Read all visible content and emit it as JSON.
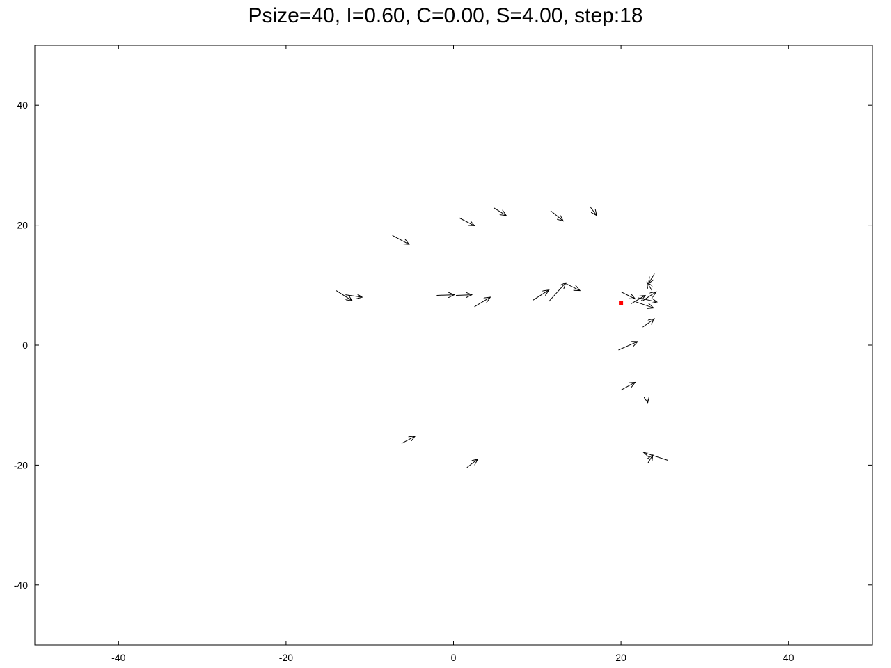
{
  "chart_data": {
    "type": "quiver",
    "title": "Psize=40, I=0.60, C=0.00, S=4.00, step:18",
    "xlabel": "",
    "ylabel": "",
    "xlim": [
      -50,
      50
    ],
    "ylim": [
      -50,
      50
    ],
    "xticks": [
      -40,
      -20,
      0,
      20,
      40
    ],
    "yticks": [
      -40,
      -20,
      0,
      20,
      40
    ],
    "grid": false,
    "legend": "none",
    "colors": {
      "arrow": "#000000",
      "target": "#ff0000",
      "frame": "#000000",
      "background": "#ffffff"
    },
    "target_point": {
      "x": 20.0,
      "y": 7.0
    },
    "arrows": [
      {
        "x1": -7.3,
        "y1": 18.3,
        "x2": -5.3,
        "y2": 16.8
      },
      {
        "x1": 0.7,
        "y1": 21.2,
        "x2": 2.5,
        "y2": 19.9
      },
      {
        "x1": 4.8,
        "y1": 22.9,
        "x2": 6.3,
        "y2": 21.6
      },
      {
        "x1": 11.6,
        "y1": 22.4,
        "x2": 13.1,
        "y2": 20.7
      },
      {
        "x1": 16.3,
        "y1": 23.1,
        "x2": 17.1,
        "y2": 21.6
      },
      {
        "x1": -14.0,
        "y1": 9.1,
        "x2": -12.1,
        "y2": 7.4
      },
      {
        "x1": -12.9,
        "y1": 8.4,
        "x2": -10.9,
        "y2": 8.0
      },
      {
        "x1": -2.0,
        "y1": 8.3,
        "x2": 0.1,
        "y2": 8.4
      },
      {
        "x1": 0.3,
        "y1": 8.3,
        "x2": 2.2,
        "y2": 8.4
      },
      {
        "x1": 2.5,
        "y1": 6.4,
        "x2": 4.4,
        "y2": 8.0
      },
      {
        "x1": 9.5,
        "y1": 7.5,
        "x2": 11.4,
        "y2": 9.2
      },
      {
        "x1": 11.4,
        "y1": 7.3,
        "x2": 13.4,
        "y2": 10.4
      },
      {
        "x1": 13.2,
        "y1": 10.4,
        "x2": 15.1,
        "y2": 9.1
      },
      {
        "x1": 20.0,
        "y1": 8.9,
        "x2": 21.7,
        "y2": 7.7
      },
      {
        "x1": 21.2,
        "y1": 6.9,
        "x2": 22.9,
        "y2": 8.3
      },
      {
        "x1": 22.6,
        "y1": 7.4,
        "x2": 24.2,
        "y2": 8.9
      },
      {
        "x1": 24.0,
        "y1": 11.9,
        "x2": 23.3,
        "y2": 10.3
      },
      {
        "x1": 23.7,
        "y1": 9.1,
        "x2": 23.1,
        "y2": 10.5
      },
      {
        "x1": 22.0,
        "y1": 7.9,
        "x2": 24.3,
        "y2": 7.2
      },
      {
        "x1": 21.8,
        "y1": 7.2,
        "x2": 23.9,
        "y2": 6.2
      },
      {
        "x1": 22.6,
        "y1": 3.0,
        "x2": 24.0,
        "y2": 4.4
      },
      {
        "x1": 19.7,
        "y1": -0.8,
        "x2": 22.0,
        "y2": 0.6
      },
      {
        "x1": 20.0,
        "y1": -7.5,
        "x2": 21.7,
        "y2": -6.2
      },
      {
        "x1": 23.1,
        "y1": -8.9,
        "x2": 23.2,
        "y2": -9.6
      },
      {
        "x1": 25.6,
        "y1": -19.2,
        "x2": 22.7,
        "y2": -17.9
      },
      {
        "x1": 23.2,
        "y1": -19.7,
        "x2": 23.8,
        "y2": -18.3
      },
      {
        "x1": -6.2,
        "y1": -16.4,
        "x2": -4.6,
        "y2": -15.2
      },
      {
        "x1": 1.6,
        "y1": -20.4,
        "x2": 2.9,
        "y2": -19.0
      }
    ]
  }
}
